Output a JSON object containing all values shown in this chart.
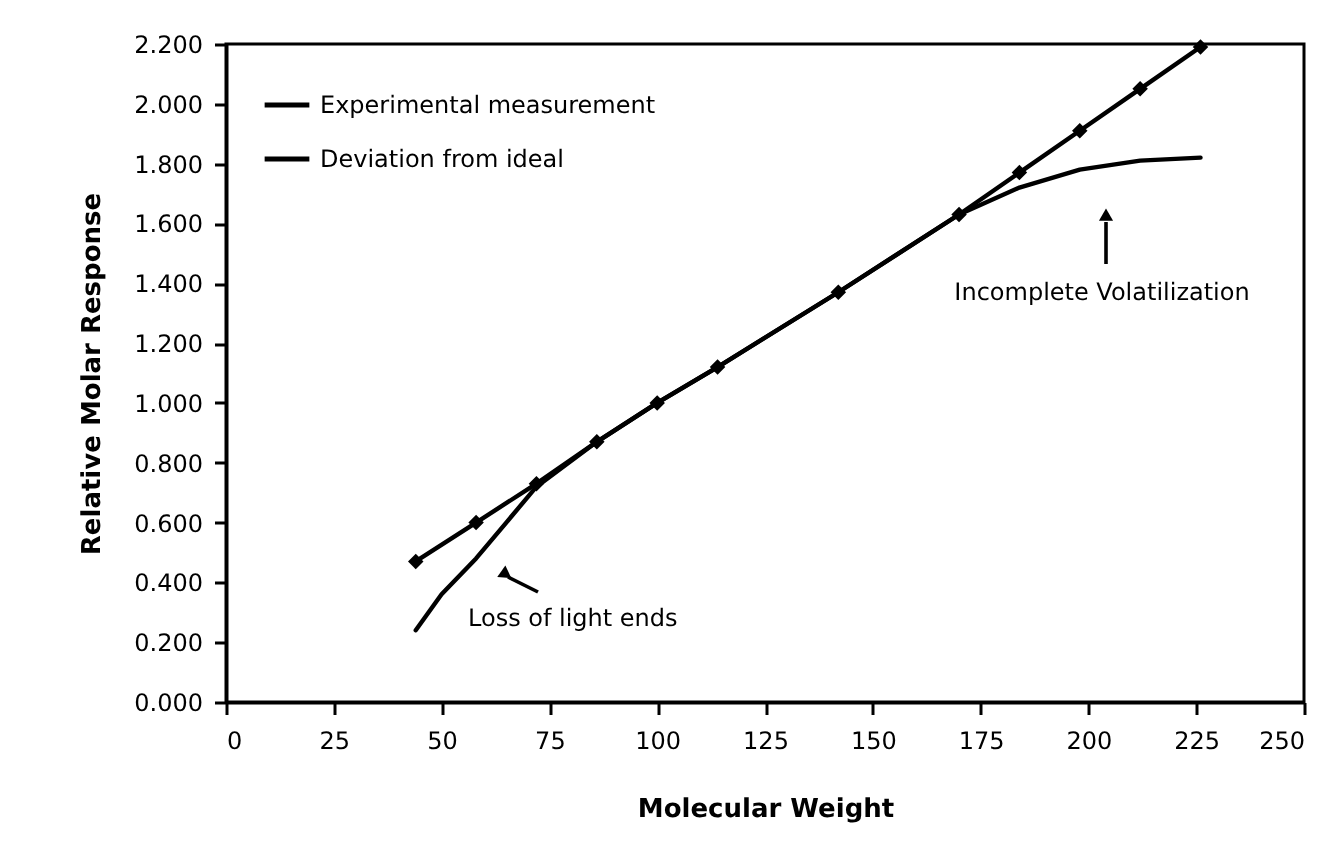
{
  "chart_data": {
    "type": "line",
    "xlabel": "Molecular Weight",
    "ylabel": "Relative Molar Response",
    "xlim": [
      0,
      250
    ],
    "xticks": [
      0,
      25,
      50,
      75,
      100,
      125,
      150,
      175,
      200,
      225,
      250
    ],
    "ylim": [
      0,
      2.2
    ],
    "yticks": [
      {
        "value": 0,
        "label": "0.000"
      },
      {
        "value": 0.2,
        "label": "0.200"
      },
      {
        "value": 0.4,
        "label": "0.400"
      },
      {
        "value": 0.6,
        "label": "0.600"
      },
      {
        "value": 0.8,
        "label": "0.800"
      },
      {
        "value": 1,
        "label": "1.000"
      },
      {
        "value": 1.2,
        "label": "1.200"
      },
      {
        "value": 1.4,
        "label": "1.400"
      },
      {
        "value": 1.6,
        "label": "1.600"
      },
      {
        "value": 1.8,
        "label": "1.800"
      },
      {
        "value": 2,
        "label": "2.000"
      },
      {
        "value": 2.2,
        "label": "2.200"
      }
    ],
    "grid": false,
    "legend": "top left",
    "line_style": "solid",
    "series": [
      {
        "name": "Experimental measurement",
        "color": "#000000",
        "marker": "diamond",
        "x": [
          44,
          58,
          72,
          86,
          100,
          114,
          142,
          170,
          184,
          198,
          212,
          226
        ],
        "values": [
          0.47,
          0.6,
          0.73,
          0.87,
          1.0,
          1.12,
          1.37,
          1.63,
          1.77,
          1.91,
          2.05,
          2.19
        ]
      },
      {
        "name": "Deviation from ideal",
        "color": "#000000",
        "marker": "none",
        "x": [
          44,
          50,
          58,
          65,
          72,
          86,
          100,
          114,
          142,
          170,
          184,
          198,
          212,
          226
        ],
        "values": [
          0.24,
          0.36,
          0.48,
          0.6,
          0.72,
          0.87,
          1.0,
          1.12,
          1.37,
          1.63,
          1.72,
          1.78,
          1.81,
          1.82
        ]
      }
    ],
    "annotations": [
      "Loss of light ends",
      "Incomplete Volatilization"
    ]
  }
}
